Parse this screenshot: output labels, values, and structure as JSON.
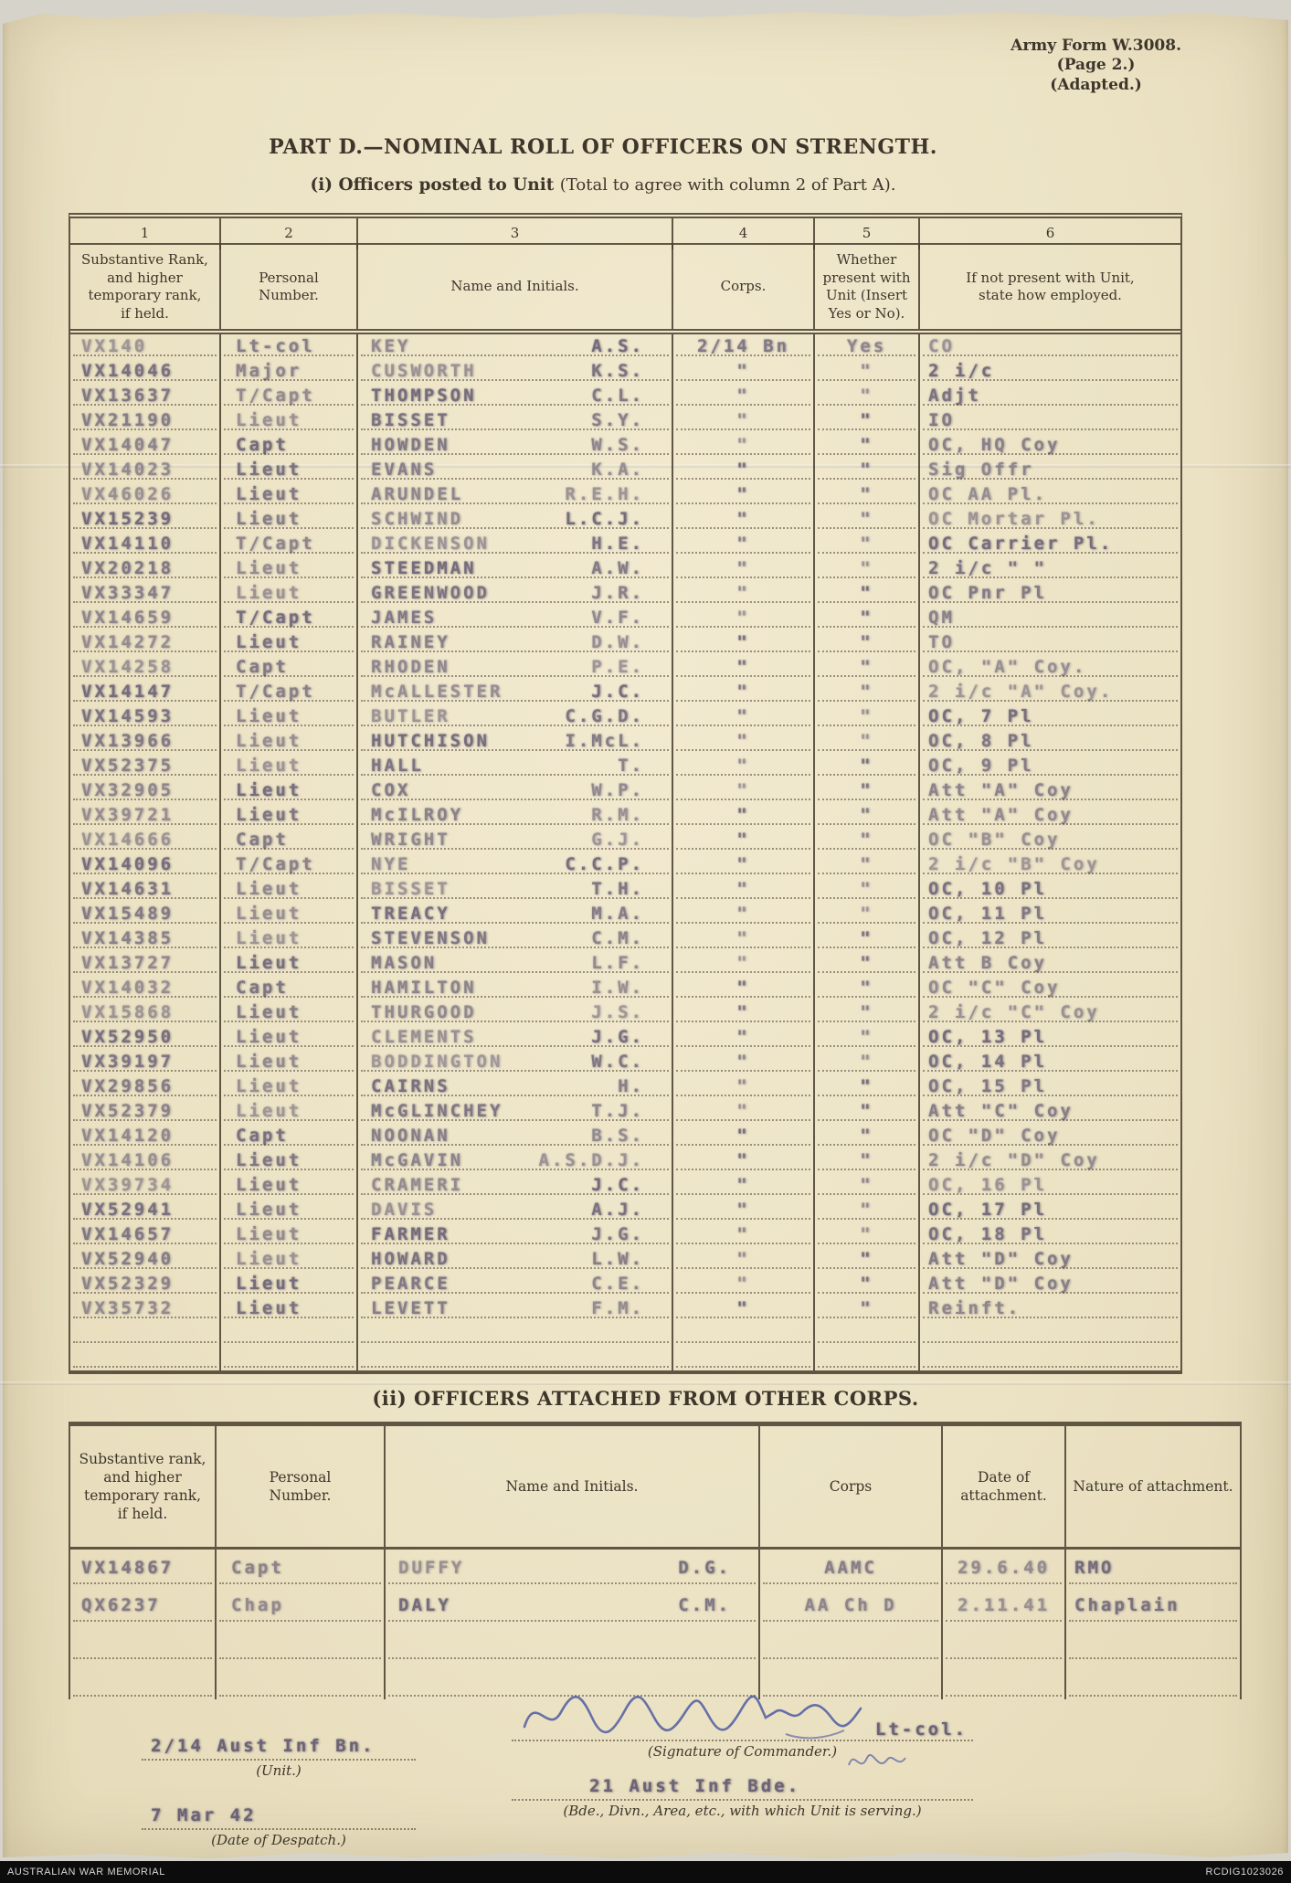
{
  "form": {
    "form_number": "Army Form W.3008.",
    "page_note": "(Page 2.)",
    "adapted_note": "(Adapted.)",
    "title": "PART D.—NOMINAL ROLL OF OFFICERS ON STRENGTH.",
    "subtitle_bold": "(i) Officers posted to Unit ",
    "subtitle_rest": "(Total to agree with column 2 of Part A)."
  },
  "table1": {
    "column_numbers": [
      "1",
      "2",
      "3",
      "4",
      "5",
      "6"
    ],
    "headers": [
      "Substantive Rank,\nand higher\ntemporary rank,\nif held.",
      "Personal\nNumber.",
      "Name and Initials.",
      "Corps.",
      "Whether\npresent with\nUnit (Insert\nYes or No).",
      "If not present with Unit,\nstate how employed."
    ],
    "rows": [
      {
        "number": "VX140",
        "rank": "Lt-col",
        "surname": "KEY",
        "initials": "A.S.",
        "corps": "2/14 Bn",
        "present": "Yes",
        "employed": "CO"
      },
      {
        "number": "VX14046",
        "rank": "Major",
        "surname": "CUSWORTH",
        "initials": "K.S.",
        "corps": "\"",
        "present": "\"",
        "employed": "2 i/c"
      },
      {
        "number": "VX13637",
        "rank": "T/Capt",
        "surname": "THOMPSON",
        "initials": "C.L.",
        "corps": "\"",
        "present": "\"",
        "employed": "Adjt"
      },
      {
        "number": "VX21190",
        "rank": "Lieut",
        "surname": "BISSET",
        "initials": "S.Y.",
        "corps": "\"",
        "present": "\"",
        "employed": "IO"
      },
      {
        "number": "VX14047",
        "rank": "Capt",
        "surname": "HOWDEN",
        "initials": "W.S.",
        "corps": "\"",
        "present": "\"",
        "employed": "OC, HQ Coy"
      },
      {
        "number": "VX14023",
        "rank": "Lieut",
        "surname": "EVANS",
        "initials": "K.A.",
        "corps": "\"",
        "present": "\"",
        "employed": "Sig Offr"
      },
      {
        "number": "VX46026",
        "rank": "Lieut",
        "surname": "ARUNDEL",
        "initials": "R.E.H.",
        "corps": "\"",
        "present": "\"",
        "employed": "OC AA Pl."
      },
      {
        "number": "VX15239",
        "rank": "Lieut",
        "surname": "SCHWIND",
        "initials": "L.C.J.",
        "corps": "\"",
        "present": "\"",
        "employed": "OC Mortar Pl."
      },
      {
        "number": "VX14110",
        "rank": "T/Capt",
        "surname": "DICKENSON",
        "initials": "H.E.",
        "corps": "\"",
        "present": "\"",
        "employed": "OC Carrier Pl."
      },
      {
        "number": "VX20218",
        "rank": "Lieut",
        "surname": "STEEDMAN",
        "initials": "A.W.",
        "corps": "\"",
        "present": "\"",
        "employed": "2 i/c \"  \""
      },
      {
        "number": "VX33347",
        "rank": "Lieut",
        "surname": "GREENWOOD",
        "initials": "J.R.",
        "corps": "\"",
        "present": "\"",
        "employed": "OC Pnr Pl"
      },
      {
        "number": "VX14659",
        "rank": "T/Capt",
        "surname": "JAMES",
        "initials": "V.F.",
        "corps": "\"",
        "present": "\"",
        "employed": "QM"
      },
      {
        "number": "VX14272",
        "rank": "Lieut",
        "surname": "RAINEY",
        "initials": "D.W.",
        "corps": "\"",
        "present": "\"",
        "employed": "TO"
      },
      {
        "number": "VX14258",
        "rank": "Capt",
        "surname": "RHODEN",
        "initials": "P.E.",
        "corps": "\"",
        "present": "\"",
        "employed": "OC, \"A\" Coy."
      },
      {
        "number": "VX14147",
        "rank": "T/Capt",
        "surname": "McALLESTER",
        "initials": "J.C.",
        "corps": "\"",
        "present": "\"",
        "employed": "2 i/c \"A\" Coy."
      },
      {
        "number": "VX14593",
        "rank": "Lieut",
        "surname": "BUTLER",
        "initials": "C.G.D.",
        "corps": "\"",
        "present": "\"",
        "employed": "OC, 7 Pl"
      },
      {
        "number": "VX13966",
        "rank": "Lieut",
        "surname": "HUTCHISON",
        "initials": "I.McL.",
        "corps": "\"",
        "present": "\"",
        "employed": "OC, 8 Pl"
      },
      {
        "number": "VX52375",
        "rank": "Lieut",
        "surname": "HALL",
        "initials": "T.",
        "corps": "\"",
        "present": "\"",
        "employed": "OC, 9 Pl"
      },
      {
        "number": "VX32905",
        "rank": "Lieut",
        "surname": "COX",
        "initials": "W.P.",
        "corps": "\"",
        "present": "\"",
        "employed": "Att \"A\" Coy"
      },
      {
        "number": "VX39721",
        "rank": "Lieut",
        "surname": "McILROY",
        "initials": "R.M.",
        "corps": "\"",
        "present": "\"",
        "employed": "Att \"A\" Coy"
      },
      {
        "number": "VX14666",
        "rank": "Capt",
        "surname": "WRIGHT",
        "initials": "G.J.",
        "corps": "\"",
        "present": "\"",
        "employed": "OC \"B\" Coy"
      },
      {
        "number": "VX14096",
        "rank": "T/Capt",
        "surname": "NYE",
        "initials": "C.C.P.",
        "corps": "\"",
        "present": "\"",
        "employed": "2 i/c \"B\" Coy"
      },
      {
        "number": "VX14631",
        "rank": "Lieut",
        "surname": "BISSET",
        "initials": "T.H.",
        "corps": "\"",
        "present": "\"",
        "employed": "OC, 10 Pl"
      },
      {
        "number": "VX15489",
        "rank": "Lieut",
        "surname": "TREACY",
        "initials": "M.A.",
        "corps": "\"",
        "present": "\"",
        "employed": "OC, 11 Pl"
      },
      {
        "number": "VX14385",
        "rank": "Lieut",
        "surname": "STEVENSON",
        "initials": "C.M.",
        "corps": "\"",
        "present": "\"",
        "employed": "OC, 12 Pl"
      },
      {
        "number": "VX13727",
        "rank": "Lieut",
        "surname": "MASON",
        "initials": "L.F.",
        "corps": "\"",
        "present": "\"",
        "employed": "Att B Coy"
      },
      {
        "number": "VX14032",
        "rank": "Capt",
        "surname": "HAMILTON",
        "initials": "I.W.",
        "corps": "\"",
        "present": "\"",
        "employed": "OC \"C\" Coy"
      },
      {
        "number": "VX15868",
        "rank": "Lieut",
        "surname": "THURGOOD",
        "initials": "J.S.",
        "corps": "\"",
        "present": "\"",
        "employed": "2 i/c \"C\" Coy"
      },
      {
        "number": "VX52950",
        "rank": "Lieut",
        "surname": "CLEMENTS",
        "initials": "J.G.",
        "corps": "\"",
        "present": "\"",
        "employed": "OC, 13 Pl"
      },
      {
        "number": "VX39197",
        "rank": "Lieut",
        "surname": "BODDINGTON",
        "initials": "W.C.",
        "corps": "\"",
        "present": "\"",
        "employed": "OC, 14 Pl"
      },
      {
        "number": "VX29856",
        "rank": "Lieut",
        "surname": "CAIRNS",
        "initials": "H.",
        "corps": "\"",
        "present": "\"",
        "employed": "OC, 15 Pl"
      },
      {
        "number": "VX52379",
        "rank": "Lieut",
        "surname": "McGLINCHEY",
        "initials": "T.J.",
        "corps": "\"",
        "present": "\"",
        "employed": "Att \"C\" Coy"
      },
      {
        "number": "VX14120",
        "rank": "Capt",
        "surname": "NOONAN",
        "initials": "B.S.",
        "corps": "\"",
        "present": "\"",
        "employed": "OC \"D\" Coy"
      },
      {
        "number": "VX14106",
        "rank": "Lieut",
        "surname": "McGAVIN",
        "initials": "A.S.D.J.",
        "corps": "\"",
        "present": "\"",
        "employed": "2 i/c \"D\" Coy"
      },
      {
        "number": "VX39734",
        "rank": "Lieut",
        "surname": "CRAMERI",
        "initials": "J.C.",
        "corps": "\"",
        "present": "\"",
        "employed": "OC, 16 Pl"
      },
      {
        "number": "VX52941",
        "rank": "Lieut",
        "surname": "DAVIS",
        "initials": "A.J.",
        "corps": "\"",
        "present": "\"",
        "employed": "OC, 17 Pl"
      },
      {
        "number": "VX14657",
        "rank": "Lieut",
        "surname": "FARMER",
        "initials": "J.G.",
        "corps": "\"",
        "present": "\"",
        "employed": "OC, 18 Pl"
      },
      {
        "number": "VX52940",
        "rank": "Lieut",
        "surname": "HOWARD",
        "initials": "L.W.",
        "corps": "\"",
        "present": "\"",
        "employed": "Att \"D\" Coy"
      },
      {
        "number": "VX52329",
        "rank": "Lieut",
        "surname": "PEARCE",
        "initials": "C.E.",
        "corps": "\"",
        "present": "\"",
        "employed": "Att \"D\" Coy"
      },
      {
        "number": "VX35732",
        "rank": "Lieut",
        "surname": "LEVETT",
        "initials": "F.M.",
        "corps": "\"",
        "present": "\"",
        "employed": "Reinft."
      },
      {
        "number": "",
        "rank": "",
        "surname": "",
        "initials": "",
        "corps": "",
        "present": "",
        "employed": ""
      },
      {
        "number": "",
        "rank": "",
        "surname": "",
        "initials": "",
        "corps": "",
        "present": "",
        "employed": ""
      }
    ]
  },
  "section2": {
    "title": "(ii) OFFICERS ATTACHED FROM OTHER CORPS.",
    "headers": [
      "Substantive rank,\nand higher\ntemporary rank,\nif held.",
      "Personal\nNumber.",
      "Name and Initials.",
      "Corps",
      "Date of\nattachment.",
      "Nature of attachment."
    ],
    "rows": [
      {
        "number": "VX14867",
        "rank": "Capt",
        "surname": "DUFFY",
        "initials": "D.G.",
        "corps": "AAMC",
        "date": "29.6.40",
        "nature": "RMO"
      },
      {
        "number": "QX6237",
        "rank": "Chap",
        "surname": "DALY",
        "initials": "C.M.",
        "corps": "AA Ch D",
        "date": "2.11.41",
        "nature": "Chaplain"
      },
      {
        "number": "",
        "rank": "",
        "surname": "",
        "initials": "",
        "corps": "",
        "date": "",
        "nature": ""
      },
      {
        "number": "",
        "rank": "",
        "surname": "",
        "initials": "",
        "corps": "",
        "date": "",
        "nature": ""
      }
    ]
  },
  "footer": {
    "unit_value": "2/14 Aust Inf Bn.",
    "unit_label": "(Unit.)",
    "despatch_value": "7 Mar 42",
    "despatch_label": "(Date of Despatch.)",
    "signature_suffix": "Lt-col.",
    "signature_label": "(Signature of Commander.)",
    "bde_value": "21 Aust Inf Bde.",
    "bde_label": "(Bde., Divn., Area, etc., with which Unit is serving.)"
  },
  "bottom_bar": {
    "left": "AUSTRALIAN WAR MEMORIAL",
    "right": "RCDIG1023026"
  }
}
